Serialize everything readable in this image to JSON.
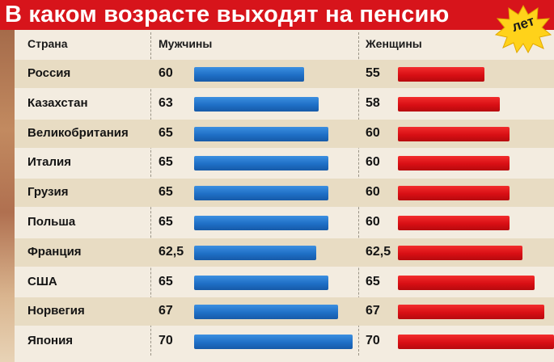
{
  "title": "В каком возрасте выходят на пенсию",
  "badge": "лет",
  "headers": {
    "country": "Страна",
    "men": "Мужчины",
    "women": "Женщины"
  },
  "colors": {
    "title_bg": "#d7141b",
    "men_bar": "#1f6fc6",
    "women_bar": "#d80f14",
    "badge": "#ffd21a"
  },
  "chart_data": {
    "type": "bar",
    "title": "В каком возрасте выходят на пенсию",
    "unit": "лет",
    "categories": [
      "Россия",
      "Казахстан",
      "Великобритания",
      "Италия",
      "Грузия",
      "Польша",
      "Франция",
      "США",
      "Норвегия",
      "Япония"
    ],
    "series": [
      {
        "name": "Мужчины",
        "values": [
          60,
          63,
          65,
          65,
          65,
          65,
          62.5,
          65,
          67,
          70
        ],
        "labels": [
          "60",
          "63",
          "65",
          "65",
          "65",
          "65",
          "62,5",
          "65",
          "67",
          "70"
        ]
      },
      {
        "name": "Женщины",
        "values": [
          55,
          58,
          60,
          60,
          60,
          60,
          62.5,
          65,
          67,
          70
        ],
        "labels": [
          "55",
          "58",
          "60",
          "60",
          "60",
          "60",
          "62,5",
          "65",
          "67",
          "70"
        ]
      }
    ]
  }
}
